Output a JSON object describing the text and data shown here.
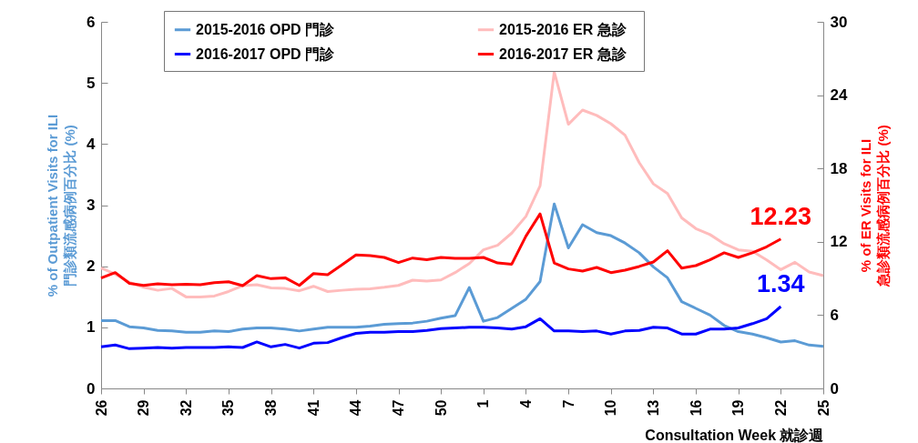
{
  "chart_data": {
    "type": "line",
    "categories": [
      "26",
      null,
      null,
      "29",
      null,
      null,
      "32",
      null,
      null,
      "35",
      null,
      null,
      "38",
      null,
      null,
      "41",
      null,
      null,
      "44",
      null,
      null,
      "47",
      null,
      null,
      "50",
      null,
      null,
      "1",
      null,
      null,
      "4",
      null,
      null,
      "7",
      null,
      null,
      "10",
      null,
      null,
      "13",
      null,
      null,
      "16",
      null,
      null,
      "19",
      null,
      null,
      "22",
      null,
      null,
      "25"
    ],
    "series": [
      {
        "name": "2015-2016 OPD 門診",
        "color": "#5b9bd5",
        "axis": "y",
        "values": [
          1.11,
          1.11,
          1.01,
          0.99,
          0.95,
          0.94,
          0.92,
          0.92,
          0.94,
          0.93,
          0.97,
          0.99,
          0.99,
          0.97,
          0.94,
          0.97,
          1.0,
          1.0,
          1.0,
          1.02,
          1.05,
          1.06,
          1.07,
          1.1,
          1.15,
          1.19,
          1.65,
          1.1,
          1.16,
          1.31,
          1.46,
          1.75,
          3.02,
          2.3,
          2.68,
          2.55,
          2.5,
          2.38,
          2.22,
          1.99,
          1.81,
          1.42,
          1.31,
          1.2,
          1.03,
          0.93,
          0.89,
          0.83,
          0.76,
          0.78,
          0.71,
          0.69
        ]
      },
      {
        "name": "2016-2017 OPD 門診",
        "color": "#0000ff",
        "axis": "y",
        "values": [
          0.68,
          0.71,
          0.65,
          0.66,
          0.67,
          0.66,
          0.67,
          0.67,
          0.67,
          0.68,
          0.67,
          0.76,
          0.68,
          0.72,
          0.66,
          0.74,
          0.75,
          0.83,
          0.9,
          0.92,
          0.92,
          0.93,
          0.93,
          0.95,
          0.98,
          0.99,
          1.0,
          1.0,
          0.99,
          0.97,
          1.01,
          1.14,
          0.94,
          0.94,
          0.93,
          0.94,
          0.89,
          0.94,
          0.95,
          1.0,
          0.99,
          0.89,
          0.89,
          0.97,
          0.97,
          0.99,
          1.06,
          1.14,
          1.34,
          null,
          null,
          null
        ],
        "value_labels": [
          null,
          null,
          null,
          null,
          null,
          null,
          null,
          null,
          null,
          null,
          null,
          null,
          null,
          null,
          null,
          null,
          null,
          null,
          null,
          null,
          null,
          null,
          null,
          null,
          null,
          null,
          null,
          null,
          null,
          null,
          null,
          null,
          null,
          null,
          null,
          null,
          null,
          null,
          null,
          null,
          null,
          null,
          null,
          null,
          null,
          null,
          null,
          null,
          "1.34",
          null,
          null,
          null
        ]
      },
      {
        "name": "2015-2016 ER   急診",
        "color": "#ffbcbc",
        "axis": "y2",
        "values": [
          9.85,
          9.35,
          8.68,
          8.28,
          8.03,
          8.18,
          7.49,
          7.49,
          7.56,
          7.93,
          8.41,
          8.49,
          8.23,
          8.18,
          7.99,
          8.36,
          7.93,
          8.03,
          8.11,
          8.16,
          8.28,
          8.43,
          8.86,
          8.78,
          8.88,
          9.48,
          10.22,
          11.34,
          11.72,
          12.71,
          14.08,
          16.57,
          25.9,
          21.62,
          22.78,
          22.34,
          21.66,
          20.72,
          18.48,
          16.74,
          15.95,
          13.96,
          13.08,
          12.59,
          11.84,
          11.34,
          11.22,
          10.52,
          9.72,
          10.32,
          9.53,
          9.23
        ]
      },
      {
        "name": "2016-2017 ER   急診",
        "color": "#ff0000",
        "axis": "y2",
        "values": [
          9.03,
          9.48,
          8.6,
          8.43,
          8.56,
          8.49,
          8.53,
          8.49,
          8.66,
          8.73,
          8.41,
          9.23,
          8.98,
          9.05,
          8.43,
          9.4,
          9.31,
          10.1,
          10.92,
          10.87,
          10.72,
          10.3,
          10.67,
          10.54,
          10.72,
          10.65,
          10.65,
          10.72,
          10.27,
          10.17,
          12.46,
          14.28,
          10.27,
          9.78,
          9.6,
          9.9,
          9.48,
          9.68,
          9.98,
          10.35,
          11.27,
          9.85,
          10.05,
          10.52,
          11.1,
          10.72,
          11.1,
          11.59,
          12.23,
          null,
          null,
          null
        ],
        "value_labels": [
          null,
          null,
          null,
          null,
          null,
          null,
          null,
          null,
          null,
          null,
          null,
          null,
          null,
          null,
          null,
          null,
          null,
          null,
          null,
          null,
          null,
          null,
          null,
          null,
          null,
          null,
          null,
          null,
          null,
          null,
          null,
          null,
          null,
          null,
          null,
          null,
          null,
          null,
          null,
          null,
          null,
          null,
          null,
          null,
          null,
          null,
          null,
          null,
          "12.23",
          null,
          null,
          null
        ]
      }
    ],
    "xlabel": "Consultation Week  就診週",
    "ylabel": "% of Outpatient Visits for ILI\n門診類流感病例百分比 (%)",
    "y2label": "% of ER Visits for ILI\n急診類流感病例百分比 (%)",
    "ylim": [
      0,
      6
    ],
    "yticks": [
      0,
      1,
      2,
      3,
      4,
      5,
      6
    ],
    "y2lim": [
      0,
      30
    ],
    "y2ticks": [
      0,
      6,
      12,
      18,
      24,
      30
    ],
    "legend": "top",
    "grid": false,
    "marker": "none",
    "line_style": "solid"
  }
}
